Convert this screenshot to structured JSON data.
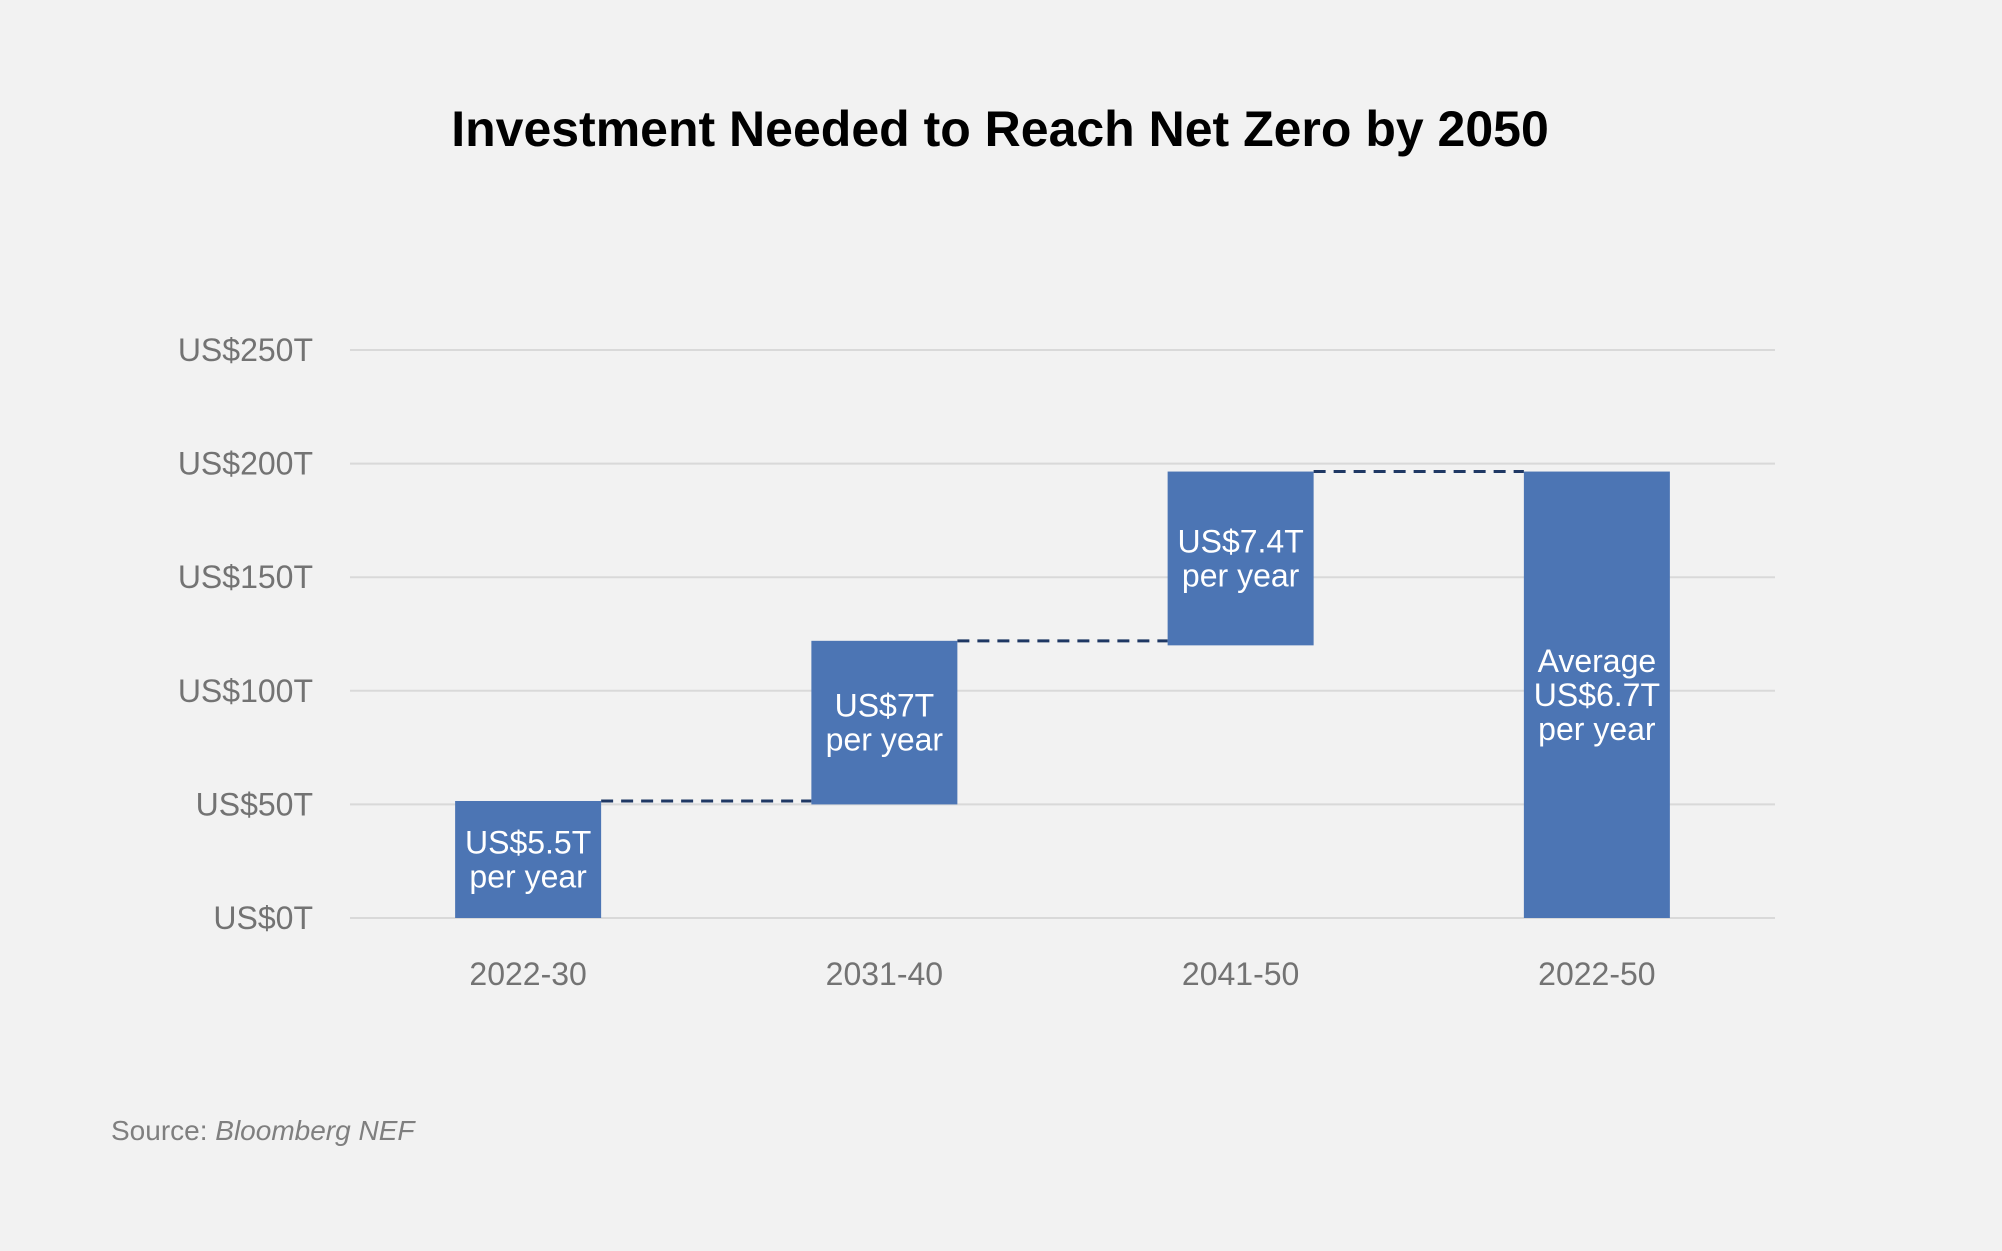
{
  "chart_data": {
    "type": "bar",
    "subtype": "waterfall",
    "title": "Investment Needed to Reach Net Zero by 2050",
    "categories": [
      "2022-30",
      "2031-40",
      "2041-50",
      "2022-50"
    ],
    "bars": [
      {
        "category": "2022-30",
        "start": 0,
        "end": 51.5,
        "label": [
          "US$5.5T",
          "per year"
        ]
      },
      {
        "category": "2031-40",
        "start": 50,
        "end": 122,
        "label": [
          "US$7T",
          "per year"
        ]
      },
      {
        "category": "2041-50",
        "start": 120,
        "end": 196.5,
        "label": [
          "US$7.4T",
          "per year"
        ]
      },
      {
        "category": "2022-50",
        "start": 0,
        "end": 196.5,
        "label": [
          "Average",
          "US$6.7T",
          "per year"
        ]
      }
    ],
    "yticks": [
      0,
      50,
      100,
      150,
      200,
      250
    ],
    "ytick_labels": [
      "US$0T",
      "US$50T",
      "US$100T",
      "US$150T",
      "US$200T",
      "US$250T"
    ],
    "ylim": [
      0,
      250
    ],
    "xlabel": "",
    "ylabel": "",
    "grid": true,
    "colors": {
      "bar": "#4c75b4",
      "connector": "#1f3864",
      "grid": "#d9d9d9"
    }
  },
  "source": {
    "prefix": "Source:",
    "name": "Bloomberg NEF"
  }
}
